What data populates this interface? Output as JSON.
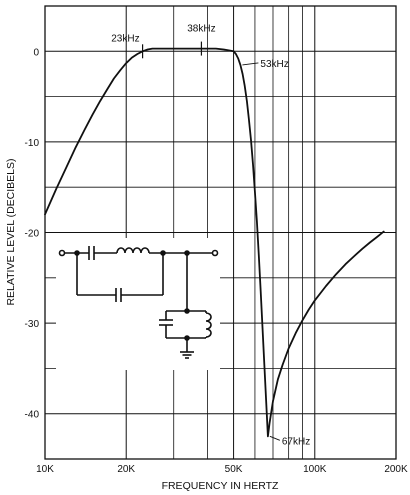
{
  "chart_data": {
    "type": "line",
    "title": "",
    "xlabel": "FREQUENCY IN HERTZ",
    "ylabel": "RELATIVE LEVEL (DECIBELS)",
    "x_scale": "log",
    "xlim": [
      10000,
      200000
    ],
    "ylim": [
      -45,
      5
    ],
    "grid": true,
    "x_tick_values": [
      10000,
      20000,
      50000,
      100000,
      200000
    ],
    "x_tick_labels": [
      "10K",
      "20K",
      "50K",
      "100K",
      "200K"
    ],
    "y_tick_values": [
      0,
      -10,
      -20,
      -30,
      -40
    ],
    "y_tick_labels": [
      "0",
      "-10",
      "-20",
      "-30",
      "-40"
    ],
    "series": [
      {
        "x": [
          10000,
          11000,
          12000,
          13000,
          14000,
          15000,
          16000,
          17000,
          18000,
          19000,
          20000,
          21000,
          22000,
          23000,
          24000,
          25000,
          27000,
          30000,
          33000,
          36000,
          38000,
          40000,
          43000,
          46000,
          48000,
          50000,
          51000,
          52000,
          53000,
          54000,
          55000,
          56000,
          57000,
          58000,
          59000,
          60000,
          61000,
          62000,
          63000,
          64000,
          65000,
          66000,
          67000,
          68000,
          70000,
          73000,
          76000,
          80000,
          85000,
          90000,
          95000,
          100000,
          110000,
          120000,
          130000,
          140000,
          150000,
          160000,
          170000,
          180000
        ],
        "y": [
          -18,
          -15.2,
          -12.8,
          -10.6,
          -8.7,
          -7.0,
          -5.5,
          -4.2,
          -3.0,
          -2.1,
          -1.3,
          -0.7,
          -0.3,
          0,
          0.2,
          0.3,
          0.3,
          0.3,
          0.3,
          0.3,
          0.3,
          0.3,
          0.3,
          0.2,
          0.1,
          0,
          -0.3,
          -0.8,
          -1.5,
          -2.5,
          -3.8,
          -5.5,
          -7.5,
          -9.8,
          -12.5,
          -15.5,
          -18.8,
          -22.5,
          -26.5,
          -30.5,
          -34.5,
          -38.5,
          -42.5,
          -41,
          -38.6,
          -36.2,
          -34.6,
          -32.8,
          -31.1,
          -29.7,
          -28.5,
          -27.5,
          -25.9,
          -24.6,
          -23.5,
          -22.6,
          -21.8,
          -21.1,
          -20.5,
          -19.9
        ]
      }
    ],
    "annotations": [
      {
        "text": "23kHz",
        "x": 23000,
        "y": 0
      },
      {
        "text": "38kHz",
        "x": 38000,
        "y": 0.3
      },
      {
        "text": "53kHz",
        "x": 53000,
        "y": -1.5
      },
      {
        "text": "67kHz",
        "x": 67000,
        "y": -42.5
      }
    ]
  },
  "colors": {
    "ink": "#111111",
    "paper": "#ffffff"
  },
  "inset": {
    "type": "circuit-schematic"
  }
}
